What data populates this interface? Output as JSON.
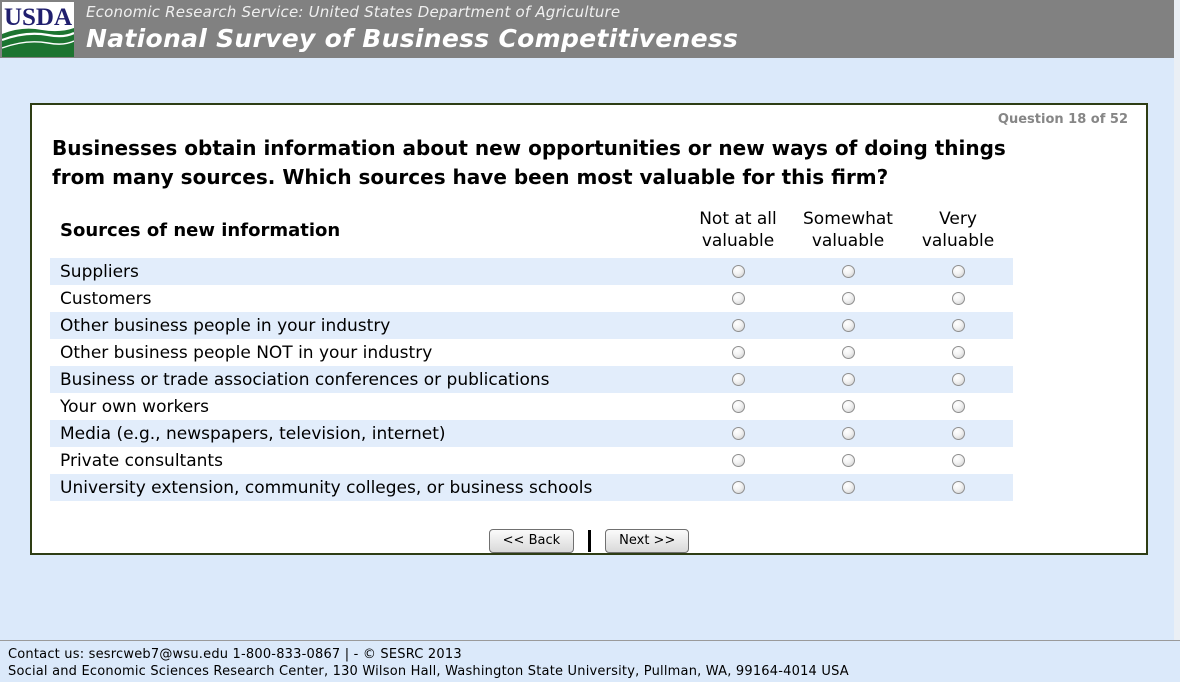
{
  "colors": {
    "header_bg": "#818181",
    "page_bg": "#dbe9fa",
    "row_stripe": "#e2edfb",
    "panel_border": "#2e3d14",
    "logo_green": "#1c7430",
    "logo_navy": "#201f6e"
  },
  "header": {
    "logo_text": "USDA",
    "agency_line": "Economic Research Service: United States Department of Agriculture",
    "title": "National Survey of Business Competitiveness"
  },
  "question": {
    "counter": "Question 18 of 52",
    "text": "Businesses obtain information about new opportunities or new ways of doing things from many sources. Which sources have been most valuable for this firm?"
  },
  "table": {
    "label_header": "Sources of new information",
    "columns": [
      "Not at all valuable",
      "Somewhat valuable",
      "Very valuable"
    ],
    "rows": [
      "Suppliers",
      "Customers",
      "Other business people in your industry",
      "Other business people NOT in your industry",
      "Business or trade association conferences or publications",
      "Your own workers",
      "Media (e.g., newspapers, television, internet)",
      "Private consultants",
      "University extension, community colleges, or business schools"
    ]
  },
  "nav": {
    "back_label": "<< Back",
    "separator": "|",
    "next_label": "Next >>"
  },
  "footer": {
    "line1": "Contact us: sesrcweb7@wsu.edu 1-800-833-0867 | - © SESRC 2013",
    "line2": "Social and Economic Sciences Research Center, 130 Wilson Hall, Washington State University, Pullman, WA, 99164-4014 USA"
  }
}
